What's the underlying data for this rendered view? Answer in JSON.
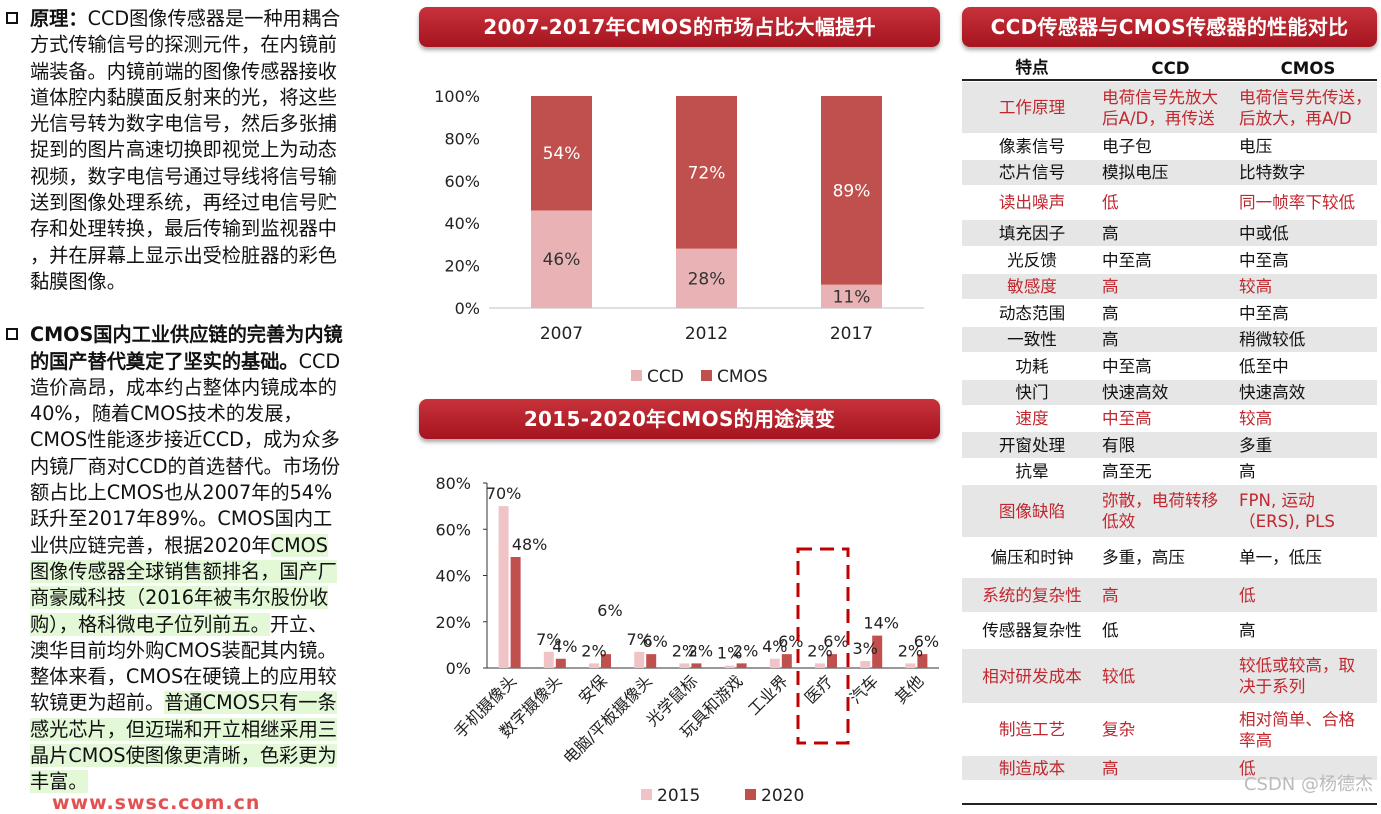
{
  "left_text": {
    "p1": {
      "bold": "原理：",
      "lines": [
        "CCD图像传感器是一种用耦合",
        "方式传输信号的探测元件，在内镜前",
        "端装备。内镜前端的图像传感器接收",
        "道体腔内黏膜面反射来的光，将这些",
        "光信号转为数字电信号，然后多张捕",
        "捉到的图片高速切换即视觉上为动态",
        "视频，数字电信号通过导线将信号输",
        "送到图像处理系统，再经过电信号贮",
        "存和处理转换，最后传输到监视器中",
        "，并在屏幕上显示出受检脏器的彩色",
        "黏膜图像。"
      ]
    },
    "p2": {
      "bold1": "CMOS国内工业供应链的完善为内镜",
      "bold2": "的国产替代奠定了坚实的基础。",
      "tail2": "CCD",
      "lines": [
        "造价高昂，成本约占整体内镜成本的",
        "40%，随着CMOS技术的发展，",
        "CMOS性能逐步接近CCD，成为众多",
        "内镜厂商对CCD的首选替代。市场份",
        "额占比上CMOS也从2007年的54%",
        "跃升至2017年89%。CMOS国内工"
      ],
      "l11_plain": "业供应链完善，根据2020年",
      "l11_hl": "CMOS",
      "hl_lines": [
        "图像传感器全球销售额排名，国产厂",
        "商豪威科技（2016年被韦尔股份收",
        "购），格科微电子位列前五。"
      ],
      "l14_tail": "开立、",
      "lines2": [
        "澳华目前均外购CMOS装配其内镜。"
      ],
      "l16_plain": "整体来看，CMOS在硬镜上的应用较",
      "l17_plain": "软镜更为超前。",
      "l17_hl": "普通CMOS只有一条",
      "hl_lines2": [
        "感光芯片，但迈瑞和开立相继采用三",
        "晶片CMOS使图像更清晰，色彩更为",
        "丰富。"
      ]
    },
    "url": "www.swsc.com.cn"
  },
  "banners": {
    "chart1_title": "2007-2017年CMOS的市场占比大幅提升",
    "chart2_title": "2015-2020年CMOS的用途演变",
    "table_title": "CCD传感器与CMOS传感器的性能对比"
  },
  "chart_data": [
    {
      "type": "bar",
      "stacked": true,
      "title": "2007-2017年CMOS的市场占比大幅提升",
      "categories": [
        "2007",
        "2012",
        "2017"
      ],
      "series": [
        {
          "name": "CCD",
          "color": "#e9b3b6",
          "values": [
            46,
            28,
            11
          ]
        },
        {
          "name": "CMOS",
          "color": "#c0504d",
          "values": [
            54,
            72,
            89
          ]
        }
      ],
      "value_labels": {
        "CCD": [
          "46%",
          "28%",
          "11%"
        ],
        "CMOS": [
          "54%",
          "72%",
          "89%"
        ]
      },
      "yticks": [
        "0%",
        "20%",
        "40%",
        "60%",
        "80%",
        "100%"
      ],
      "ylim": [
        0,
        100
      ],
      "legend": "bottom"
    },
    {
      "type": "bar",
      "title": "2015-2020年CMOS的用途演变",
      "categories": [
        "手机摄像头",
        "数字摄像头",
        "安保",
        "电脑/平板摄像头",
        "光学鼠标",
        "玩具和游戏",
        "工业界",
        "医疗",
        "汽车",
        "其他"
      ],
      "series": [
        {
          "name": "2015",
          "color": "#f0c4c6",
          "values": [
            70,
            7,
            2,
            7,
            2,
            1,
            4,
            2,
            3,
            2
          ]
        },
        {
          "name": "2020",
          "color": "#c0504d",
          "values": [
            48,
            4,
            6,
            6,
            2,
            2,
            6,
            6,
            14,
            6
          ]
        }
      ],
      "value_labels": {
        "2015": [
          "70%",
          "7%",
          "2%",
          "7%",
          "2%",
          "1%",
          "4%",
          "2%",
          "3%",
          "2%"
        ],
        "2020": [
          "48%",
          "4%",
          "6%",
          "6%",
          "2%",
          "2%",
          "6%",
          "6%",
          "14%",
          "6%"
        ]
      },
      "yticks": [
        "0%",
        "20%",
        "40%",
        "60%",
        "80%"
      ],
      "ylim": [
        0,
        80
      ],
      "highlight_category": "医疗",
      "legend": "bottom"
    }
  ],
  "table": {
    "headers": [
      "特点",
      "CCD",
      "CMOS"
    ],
    "rows": [
      {
        "feature": "工作原理",
        "ccd": "电荷信号先放大后A/D，再传送",
        "cmos": "电荷信号先传送后放大，再A/D",
        "shade": true,
        "red": true,
        "ccd_lines": [
          "电荷信号先放大",
          "后A/D，再传送"
        ],
        "cmos_lines": [
          "电荷信号先传送，",
          "后放大，再A/D"
        ]
      },
      {
        "feature": "像素信号",
        "ccd": "电子包",
        "cmos": "电压",
        "shade": false,
        "red": false
      },
      {
        "feature": "芯片信号",
        "ccd": "模拟电压",
        "cmos": "比特数字",
        "shade": true,
        "red": false
      },
      {
        "feature": "读出噪声",
        "ccd": "低",
        "cmos": "同一帧率下较低",
        "shade": false,
        "red": true
      },
      {
        "feature": "填充因子",
        "ccd": "高",
        "cmos": "中或低",
        "shade": true,
        "red": false
      },
      {
        "feature": "光反馈",
        "ccd": "中至高",
        "cmos": "中至高",
        "shade": false,
        "red": false
      },
      {
        "feature": "敏感度",
        "ccd": "高",
        "cmos": "较高",
        "shade": true,
        "red": true
      },
      {
        "feature": "动态范围",
        "ccd": "高",
        "cmos": "中至高",
        "shade": false,
        "red": false
      },
      {
        "feature": "一致性",
        "ccd": "高",
        "cmos": "稍微较低",
        "shade": true,
        "red": false
      },
      {
        "feature": "功耗",
        "ccd": "中至高",
        "cmos": "低至中",
        "shade": false,
        "red": false
      },
      {
        "feature": "快门",
        "ccd": "快速高效",
        "cmos": "快速高效",
        "shade": true,
        "red": false
      },
      {
        "feature": "速度",
        "ccd": "中至高",
        "cmos": "较高",
        "shade": false,
        "red": true
      },
      {
        "feature": "开窗处理",
        "ccd": "有限",
        "cmos": "多重",
        "shade": true,
        "red": false
      },
      {
        "feature": "抗晕",
        "ccd": "高至无",
        "cmos": "高",
        "shade": false,
        "red": false
      },
      {
        "feature": "图像缺陷",
        "ccd": "弥散，电荷转移低效",
        "cmos": "FPN, 运动（ERS), PLS",
        "shade": true,
        "red": true,
        "ccd_lines": [
          "弥散，电荷转移",
          "低效"
        ],
        "cmos_lines": [
          "FPN, 运动",
          "（ERS), PLS"
        ]
      },
      {
        "feature": "偏压和时钟",
        "ccd": "多重，高压",
        "cmos": "单一，低压",
        "shade": false,
        "red": false
      },
      {
        "feature": "系统的复杂性",
        "ccd": "高",
        "cmos": "低",
        "shade": true,
        "red": true
      },
      {
        "feature": "传感器复杂性",
        "ccd": "低",
        "cmos": "高",
        "shade": false,
        "red": false
      },
      {
        "feature": "相对研发成本",
        "ccd": "较低",
        "cmos": "较低或较高，取决于系列",
        "shade": true,
        "red": true,
        "cmos_lines": [
          "较低或较高，取",
          "决于系列"
        ]
      },
      {
        "feature": "制造工艺",
        "ccd": "复杂",
        "cmos": "相对简单、合格率高",
        "shade": false,
        "red": true,
        "cmos_lines": [
          "相对简单、合格",
          "率高"
        ]
      },
      {
        "feature": "制造成本",
        "ccd": "高",
        "cmos": "低",
        "shade": true,
        "red": true
      }
    ]
  },
  "watermark": "CSDN @杨德杰"
}
